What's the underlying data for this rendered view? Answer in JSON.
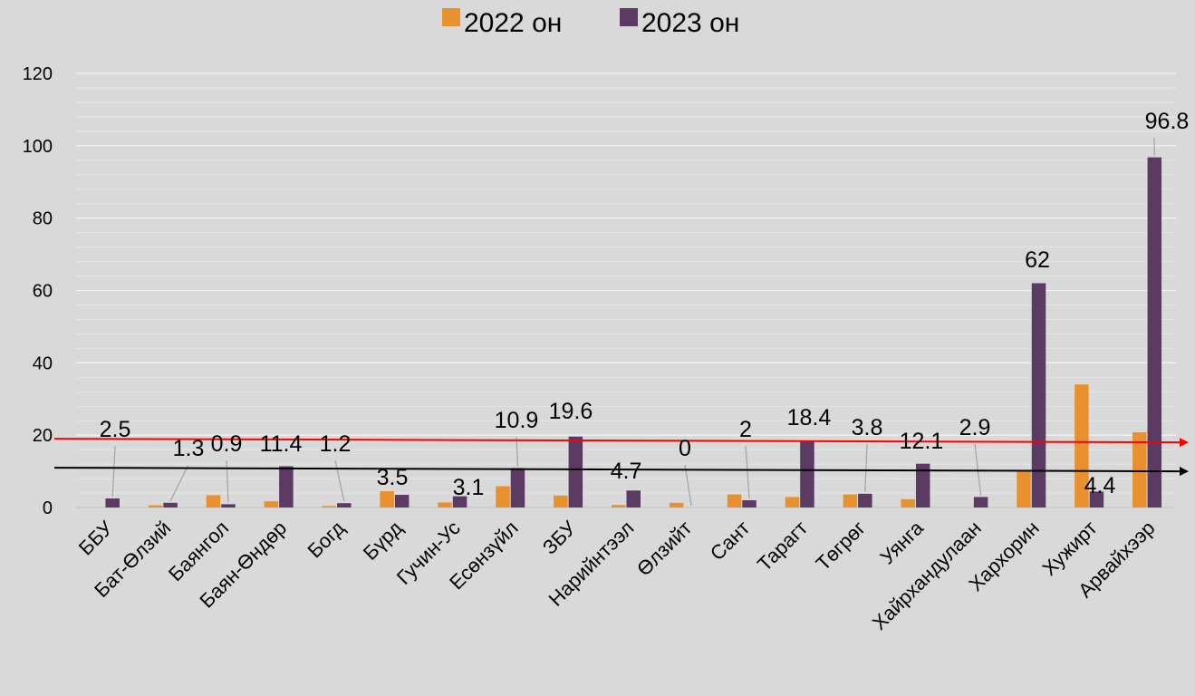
{
  "chart_data": {
    "type": "bar",
    "title": "",
    "xlabel": "",
    "ylabel": "",
    "ylim": [
      0,
      120
    ],
    "yticks": [
      0,
      20,
      40,
      60,
      80,
      100,
      120
    ],
    "grid": true,
    "legend_position": "top",
    "categories": [
      "ББУ",
      "Бат-Өлзий",
      "Баянгол",
      "Баян-Өндөр",
      "Богд",
      "Бүрд",
      "Гучин-Ус",
      "Есөнзүйл",
      "ЗБУ",
      "Нарийнтээл",
      "Өлзийт",
      "Сант",
      "Тарагт",
      "Төгрөг",
      "Уянга",
      "Хайрхандулаан",
      "Хархорин",
      "Хужирт",
      "Арвайхээр"
    ],
    "series": [
      {
        "name": "2022 он",
        "color": "#e8912e",
        "values": [
          0,
          0.6,
          3.4,
          1.7,
          0.4,
          4.5,
          1.4,
          5.9,
          3.3,
          0.7,
          1.3,
          3.6,
          2.9,
          3.6,
          2.3,
          0,
          10,
          34,
          20.8
        ]
      },
      {
        "name": "2023 он",
        "color": "#5b3a64",
        "values": [
          2.5,
          1.3,
          0.9,
          11.4,
          1.2,
          3.5,
          3.1,
          10.9,
          19.6,
          4.7,
          0,
          2,
          18.4,
          3.8,
          12.1,
          2.9,
          62,
          4.4,
          96.8
        ],
        "data_labels": [
          "2.5",
          "1.3",
          "0.9",
          "11.4",
          "1.2",
          "3.5",
          "3.1",
          "10.9",
          "19.6",
          "4.7",
          "0",
          "2",
          "18.4",
          "3.8",
          "12.1",
          "2.9",
          "62",
          "4.4",
          "96.8"
        ]
      }
    ],
    "reference_lines": [
      {
        "color": "#ff0000",
        "y_start": 19,
        "y_end": 18,
        "arrow": "right"
      },
      {
        "color": "#000000",
        "y_start": 11,
        "y_end": 10,
        "arrow": "right"
      }
    ]
  }
}
